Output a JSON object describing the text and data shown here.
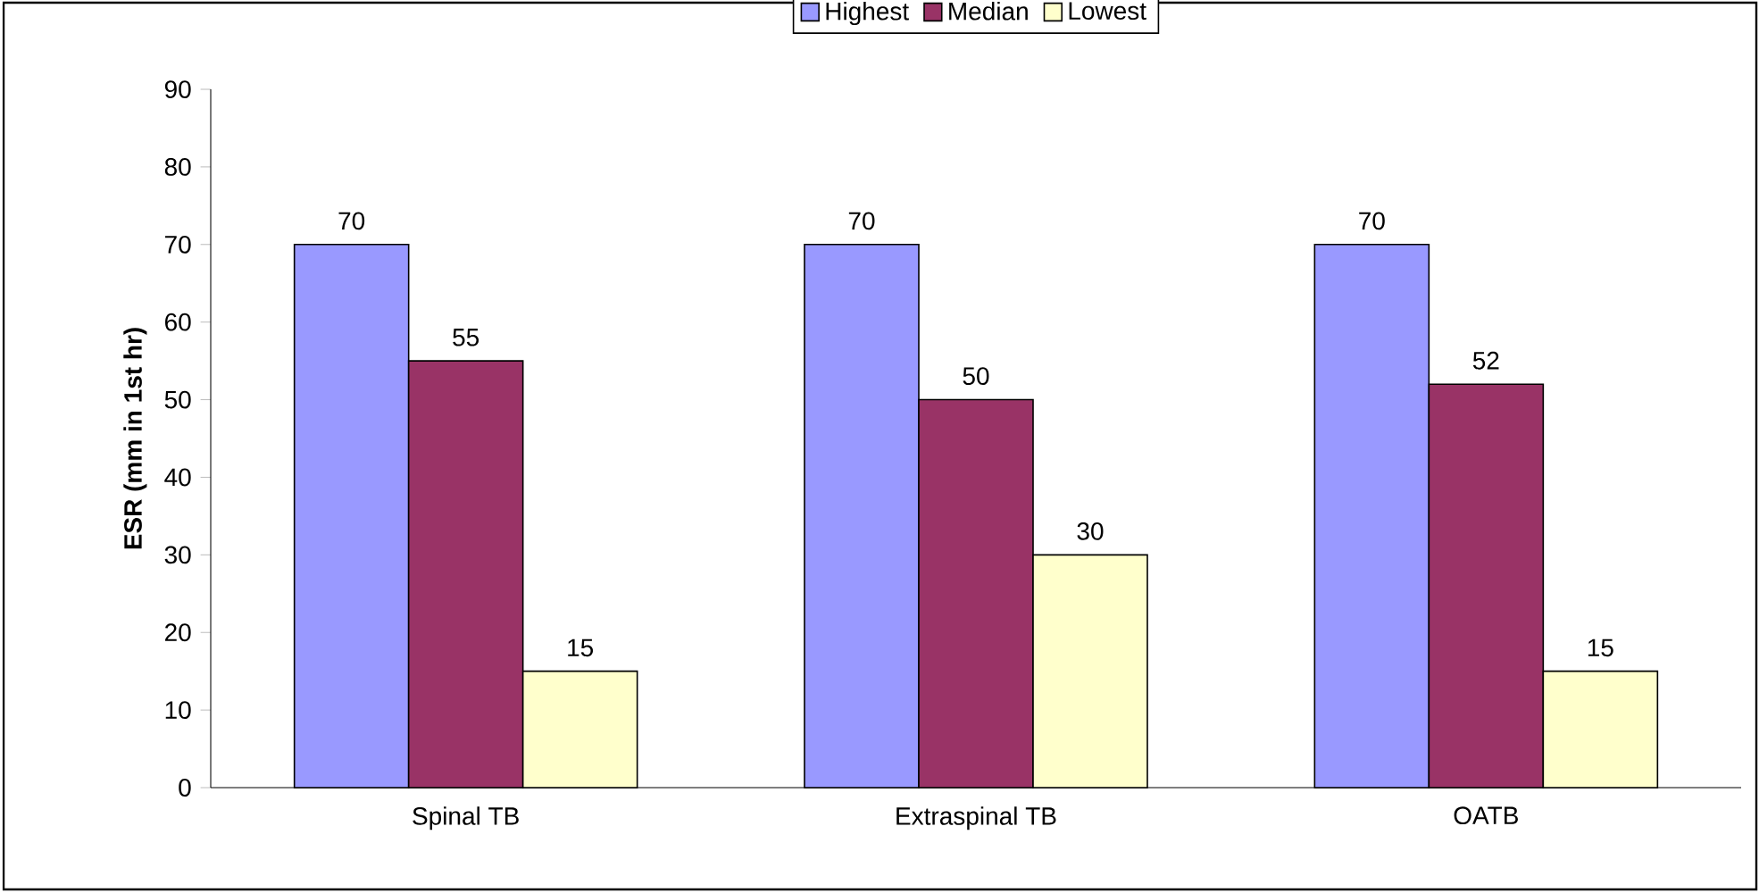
{
  "chart_data": {
    "type": "bar",
    "ylabel": "ESR (mm in 1st hr)",
    "categories": [
      "Spinal TB",
      "Extraspinal TB",
      "OATB"
    ],
    "series": [
      {
        "name": "Highest",
        "color": "#9999ff",
        "values": [
          70,
          70,
          70
        ]
      },
      {
        "name": "Median",
        "color": "#993366",
        "values": [
          55,
          50,
          52
        ]
      },
      {
        "name": "Lowest",
        "color": "#ffffcc",
        "values": [
          15,
          30,
          15
        ]
      }
    ],
    "ylim": [
      0,
      90
    ],
    "yticks": [
      0,
      10,
      20,
      30,
      40,
      50,
      60,
      70,
      80,
      90
    ],
    "data_labels": true,
    "grid": false,
    "legend": "top"
  }
}
